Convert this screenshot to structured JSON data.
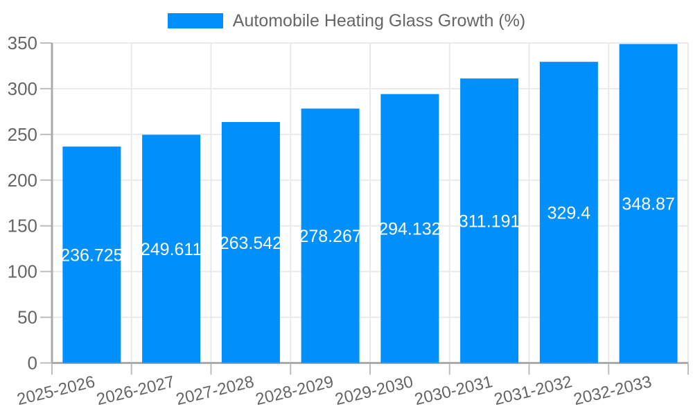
{
  "chart_data": {
    "type": "bar",
    "title": "Automobile Heating Glass Growth (%)",
    "legend_label": "Automobile Heating Glass Growth (%)",
    "legend_position": "top",
    "categories": [
      "2025-2026",
      "2026-2027",
      "2027-2028",
      "2028-2029",
      "2029-2030",
      "2030-2031",
      "2031-2032",
      "2032-2033"
    ],
    "series": [
      {
        "name": "Automobile Heating Glass Growth (%)",
        "values": [
          236.725,
          249.611,
          263.542,
          278.267,
          294.132,
          311.191,
          329.4,
          348.87
        ]
      }
    ],
    "data_labels": [
      "236.725",
      "249.611",
      "263.542",
      "278.267",
      "294.132",
      "311.191",
      "329.4",
      "348.87"
    ],
    "xlabel": "",
    "ylabel": "",
    "ylim": [
      0,
      350
    ],
    "yticks": [
      0,
      50,
      100,
      150,
      200,
      250,
      300,
      350
    ],
    "grid": true,
    "x_label_rotation_deg": -13.5,
    "colors": {
      "bar": "#008FFB",
      "bar_label_text": "#FFFFFF",
      "axis_text": "#666666",
      "legend_text": "#666666",
      "grid_line": "#EAEAEA",
      "axis_line": "#ABABAB",
      "tick_mark": "#BDBDBD",
      "background": "#FFFFFF"
    }
  }
}
